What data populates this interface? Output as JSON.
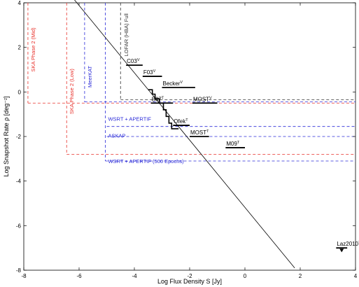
{
  "chart_data": {
    "type": "line",
    "xlabel": "Log Flux Density S [Jy]",
    "ylabel": "Log Snapshot Rate ρ [deg⁻²]",
    "xlim": [
      -8,
      4
    ],
    "ylim": [
      -8,
      4
    ],
    "x_ticks": [
      -8,
      -6,
      -4,
      -2,
      0,
      2,
      4
    ],
    "y_ticks": [
      -8,
      -6,
      -4,
      -2,
      0,
      2,
      4
    ],
    "grid": false,
    "diagonal_line": {
      "x": [
        -8,
        1.8
      ],
      "y": [
        6.9,
        -7.9
      ]
    },
    "survey_limits": [
      {
        "name": "SKA Phase 2 (Mid)",
        "color": "#e8302a",
        "x": -7.85,
        "y": -0.5,
        "label_x": -7.6,
        "label_y": 0.9
      },
      {
        "name": "SKA Phase 2 (Low)",
        "color": "#e8302a",
        "x": -6.45,
        "y": -2.8,
        "label_x": -6.2,
        "label_y": -1.0
      },
      {
        "name": "MeerKAT",
        "color": "#2a2ad8",
        "x": -5.8,
        "y": -0.45,
        "label_x": -5.55,
        "label_y": 0.2
      },
      {
        "name": "WSRT + APERTIF (500 Epochs)",
        "color": "#2a2ad8",
        "x": -5.05,
        "y": -3.1,
        "label_x": -4.95,
        "label_y": -3.2
      },
      {
        "name": "LOFAR (HBA) Full",
        "color": "#333333",
        "x": -4.5,
        "y": -0.35,
        "label_x": -4.23,
        "label_y": 1.6
      }
    ],
    "horizontal_labels": [
      {
        "text": "WSRT + APERTIF",
        "color": "#2a2ad8",
        "x": -4.95,
        "y": -1.3
      },
      {
        "text": "ASKAP",
        "color": "#2a2ad8",
        "x": -4.95,
        "y": -2.05
      }
    ],
    "extra_horizontal_lines": [
      {
        "color": "#2a2ad8",
        "x_start": -5.0,
        "y": -1.55
      },
      {
        "color": "#2a2ad8",
        "x_start": -5.0,
        "y": -2.0
      }
    ],
    "survey_points": [
      {
        "name": "C03",
        "sup": "V",
        "x1": -4.3,
        "x2": -3.7,
        "y": 1.2
      },
      {
        "name": "F03",
        "sup": "V",
        "x1": -3.7,
        "x2": -3.0,
        "y": 0.7
      },
      {
        "name": "Becker",
        "sup": "V",
        "x1": -3.0,
        "x2": -1.8,
        "y": 0.2
      },
      {
        "name": "B07",
        "sup": "T",
        "x1": -3.4,
        "x2": -2.6,
        "y": -0.5
      },
      {
        "name": "MOST",
        "sup": "V",
        "x1": -1.9,
        "x2": -1.0,
        "y": -0.5
      },
      {
        "name": "Ofek",
        "sup": "T",
        "x1": -2.6,
        "x2": -2.0,
        "y": -1.5
      },
      {
        "name": "MOST",
        "sup": "T",
        "x1": -2.0,
        "x2": -1.3,
        "y": -2.0
      },
      {
        "name": "M09",
        "sup": "T",
        "x1": -0.7,
        "x2": 0.0,
        "y": -2.5
      },
      {
        "name": "Laz2010",
        "sup": "T",
        "x1": 3.3,
        "x2": 3.7,
        "y": -7.0
      }
    ],
    "step_curve": [
      [
        -3.5,
        0.1
      ],
      [
        -3.35,
        0.1
      ],
      [
        -3.35,
        -0.1
      ],
      [
        -3.25,
        -0.1
      ],
      [
        -3.25,
        -0.3
      ],
      [
        -3.1,
        -0.3
      ],
      [
        -3.1,
        -0.5
      ],
      [
        -2.95,
        -0.5
      ],
      [
        -2.95,
        -0.8
      ],
      [
        -2.85,
        -0.8
      ],
      [
        -2.85,
        -1.1
      ],
      [
        -2.75,
        -1.1
      ],
      [
        -2.75,
        -1.4
      ],
      [
        -2.65,
        -1.4
      ],
      [
        -2.65,
        -1.65
      ],
      [
        -2.4,
        -1.65
      ]
    ],
    "laz2010_marker": {
      "x": 3.5,
      "y": -7.1
    }
  }
}
